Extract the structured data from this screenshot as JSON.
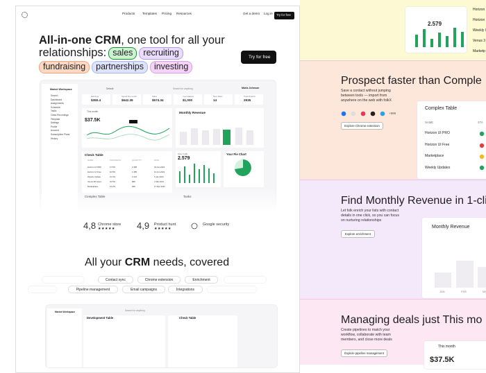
{
  "nav": {
    "links": [
      "Products",
      "Templates",
      "Pricing",
      "Resources"
    ],
    "demo": "Get a demo",
    "login": "Log in",
    "cta": "Try for free"
  },
  "hero": {
    "title_bold": "All-in-one CRM",
    "title_rest": ", one tool for all your",
    "title_line2": "relationships:",
    "tags": [
      "sales",
      "recruiting",
      "fundraising",
      "partnerships",
      "investing"
    ],
    "cta": "Try for free"
  },
  "dashboard": {
    "workspace": "Market Workspace",
    "search": "Search for anything",
    "user": "Maria Johnson",
    "tab": "Default",
    "menu": [
      "Search",
      "Dashboard",
      "Assignments",
      "Schedule",
      "Tasks",
      "Class Recordings",
      "Template",
      "Settings",
      "Profile",
      "Account",
      "Subscription Plans",
      "History"
    ],
    "stats": [
      {
        "label": "Earnings",
        "value": "$350.4"
      },
      {
        "label": "Spend this month",
        "value": "$642.39"
      },
      {
        "label": "Sales",
        "value": "$574.34"
      },
      {
        "label": "Your balance",
        "value": "$1,000"
      },
      {
        "label": "New Tasks",
        "value": "14"
      },
      {
        "label": "Total Projects",
        "value": "2935"
      }
    ],
    "month_label": "This month",
    "month_value": "$37.5K",
    "revenue": "Monthly Revenue",
    "check": "Check Table",
    "check_cols": [
      "NAME",
      "PROGRESS",
      "QUANTITY",
      "DATE"
    ],
    "check_rows": [
      [
        "Horizon UI PRO",
        "17.5%",
        "2.458",
        "24.Jan.2021"
      ],
      [
        "Horizon UI Free",
        "10.8%",
        "1.485",
        "12.Jun.2021"
      ],
      [
        "Weekly Update",
        "21.3%",
        "1.024",
        "5.Jan.2021"
      ],
      [
        "Venus 3D Asset",
        "31.5%",
        "858",
        "7.Mar.2021"
      ],
      [
        "Marketplace",
        "12.2%",
        "258",
        "17.Dec.2021"
      ]
    ],
    "traffic": "Daily Traffic",
    "traffic_value": "2.579",
    "pie": "Your Pie Chart",
    "complex": "Complex Table",
    "tasks": "Tasks"
  },
  "ratings": [
    {
      "score": "4,8",
      "source": "Chrome store",
      "stars": "★★★★★"
    },
    {
      "score": "4,9",
      "source": "Product hunt",
      "stars": "★★★★★"
    }
  ],
  "security": "Google security",
  "features": {
    "title_pre": "All your ",
    "title_bold": "CRM",
    "title_post": " needs, covered",
    "pills": [
      "Contact sync",
      "Chrome extension",
      "Enrichment",
      "Pipeline management",
      "Email campaigns",
      "Integrations"
    ]
  },
  "dashboard2": {
    "dev": "Development Table",
    "check": "Check Table"
  },
  "top_panel": {
    "value": "2.579",
    "rows": [
      "Horizon UI",
      "Horizon U",
      "Weekly U",
      "Venus 3",
      "Marketp"
    ]
  },
  "prospect": {
    "title": "Prospect faster than Comple",
    "text": [
      "Save a contact without jumping",
      "between tools — import from",
      "anywhere on the web with folkX"
    ],
    "more": "+999",
    "button": "Explore Chrome extension",
    "card_title": "Complex Table",
    "cols": [
      "NAME",
      "STA"
    ],
    "rows": [
      "Horizon UI PRO",
      "Horizon UI Free",
      "Marketplace",
      "Weekly Updates"
    ]
  },
  "enrich": {
    "title": "Find Monthly Revenue in 1-cli",
    "text": [
      "Let folk enrich your lists with contact",
      "details in one click, so you can focus",
      "on nurturing relationships"
    ],
    "button": "Explore enrichment",
    "card_title": "Monthly Revenue",
    "months": [
      "JAN",
      "FEB",
      "MA"
    ]
  },
  "deals": {
    "title": "Managing deals just This mo",
    "text": [
      "Create pipelines to match your",
      "workflow, collaborate with team",
      "members, and close more deals"
    ],
    "button": "Explore pipeline management",
    "card_title": "This month",
    "card_value": "$37.5K"
  }
}
